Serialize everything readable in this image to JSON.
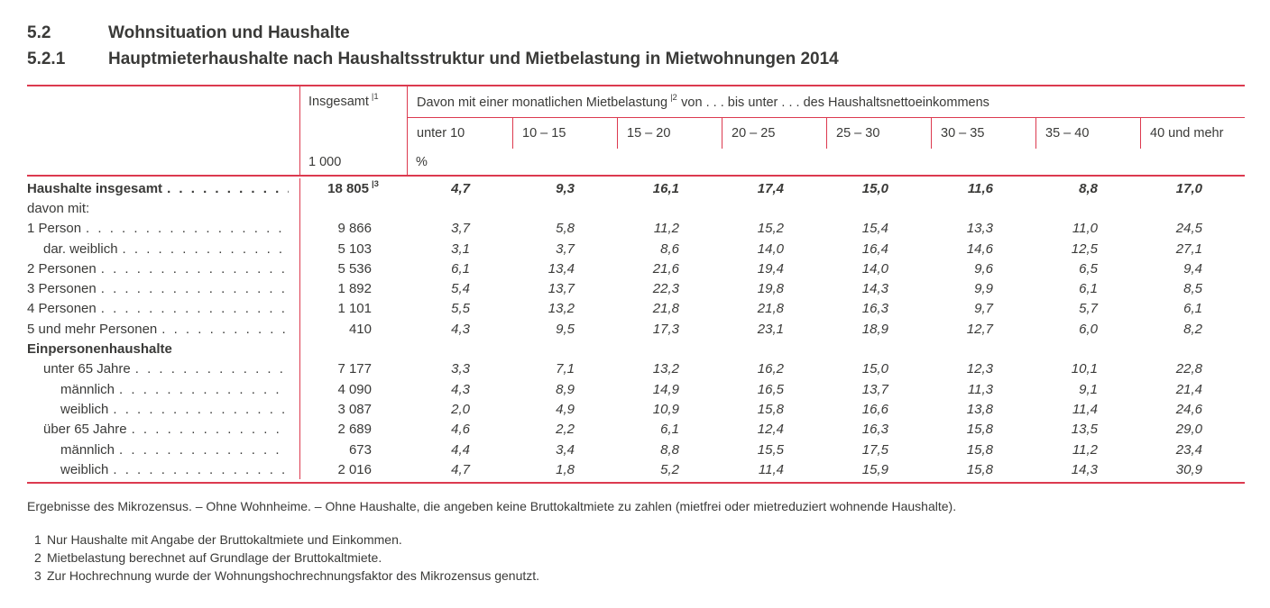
{
  "page": {
    "colors": {
      "accent_red": "#dc3a4f",
      "text": "#3a3a38"
    }
  },
  "heading": {
    "no1": "5.2",
    "title1": "Wohnsituation und Haushalte",
    "no2": "5.2.1",
    "title2": "Hauptmieterhaushalte nach Haushaltsstruktur und Mietbelastung in Mietwohnungen 2014"
  },
  "table": {
    "insgesamt_label": "Insgesamt",
    "insgesamt_fn": "|1",
    "davon_label": "Davon mit einer monatlichen Mietbelastung",
    "davon_fn": "|2",
    "davon_label2": "von . . . bis unter . . . des Haushaltsnettoeinkommens",
    "columns": [
      "unter 10",
      "10 – 15",
      "15 – 20",
      "20 – 25",
      "25 – 30",
      "30 – 35",
      "35 – 40",
      "40 und mehr"
    ],
    "unit_total": "1 000",
    "unit_percent": "%",
    "rows": [
      {
        "label": "Haushalte insgesamt",
        "indent": 0,
        "bold": true,
        "leader": true,
        "total": "18 805",
        "total_fn": "|3",
        "values": [
          "4,7",
          "9,3",
          "16,1",
          "17,4",
          "15,0",
          "11,6",
          "8,8",
          "17,0"
        ]
      },
      {
        "label": "davon mit:",
        "indent": 0,
        "bold": false,
        "leader": false,
        "total": "",
        "values": []
      },
      {
        "label": "1 Person",
        "indent": 0,
        "bold": false,
        "leader": true,
        "total": "9 866",
        "values": [
          "3,7",
          "5,8",
          "11,2",
          "15,2",
          "15,4",
          "13,3",
          "11,0",
          "24,5"
        ]
      },
      {
        "label": "dar. weiblich",
        "indent": 1,
        "bold": false,
        "leader": true,
        "total": "5 103",
        "values": [
          "3,1",
          "3,7",
          "8,6",
          "14,0",
          "16,4",
          "14,6",
          "12,5",
          "27,1"
        ]
      },
      {
        "label": "2 Personen",
        "indent": 0,
        "bold": false,
        "leader": true,
        "total": "5 536",
        "values": [
          "6,1",
          "13,4",
          "21,6",
          "19,4",
          "14,0",
          "9,6",
          "6,5",
          "9,4"
        ]
      },
      {
        "label": "3 Personen",
        "indent": 0,
        "bold": false,
        "leader": true,
        "total": "1 892",
        "values": [
          "5,4",
          "13,7",
          "22,3",
          "19,8",
          "14,3",
          "9,9",
          "6,1",
          "8,5"
        ]
      },
      {
        "label": "4 Personen",
        "indent": 0,
        "bold": false,
        "leader": true,
        "total": "1 101",
        "values": [
          "5,5",
          "13,2",
          "21,8",
          "21,8",
          "16,3",
          "9,7",
          "5,7",
          "6,1"
        ]
      },
      {
        "label": "5 und mehr Personen",
        "indent": 0,
        "bold": false,
        "leader": true,
        "total": "410",
        "values": [
          "4,3",
          "9,5",
          "17,3",
          "23,1",
          "18,9",
          "12,7",
          "6,0",
          "8,2"
        ]
      },
      {
        "label": "Einpersonenhaushalte",
        "indent": 0,
        "bold": true,
        "leader": false,
        "total": "",
        "values": []
      },
      {
        "label": "unter 65 Jahre",
        "indent": 1,
        "bold": false,
        "leader": true,
        "total": "7 177",
        "values": [
          "3,3",
          "7,1",
          "13,2",
          "16,2",
          "15,0",
          "12,3",
          "10,1",
          "22,8"
        ]
      },
      {
        "label": "männlich",
        "indent": 2,
        "bold": false,
        "leader": true,
        "total": "4 090",
        "values": [
          "4,3",
          "8,9",
          "14,9",
          "16,5",
          "13,7",
          "11,3",
          "9,1",
          "21,4"
        ]
      },
      {
        "label": "weiblich",
        "indent": 2,
        "bold": false,
        "leader": true,
        "total": "3 087",
        "values": [
          "2,0",
          "4,9",
          "10,9",
          "15,8",
          "16,6",
          "13,8",
          "11,4",
          "24,6"
        ]
      },
      {
        "label": "über 65 Jahre",
        "indent": 1,
        "bold": false,
        "leader": true,
        "total": "2 689",
        "values": [
          "4,6",
          "2,2",
          "6,1",
          "12,4",
          "16,3",
          "15,8",
          "13,5",
          "29,0"
        ]
      },
      {
        "label": "männlich",
        "indent": 2,
        "bold": false,
        "leader": true,
        "total": "673",
        "values": [
          "4,4",
          "3,4",
          "8,8",
          "15,5",
          "17,5",
          "15,8",
          "11,2",
          "23,4"
        ]
      },
      {
        "label": "weiblich",
        "indent": 2,
        "bold": false,
        "leader": true,
        "total": "2 016",
        "values": [
          "4,7",
          "1,8",
          "5,2",
          "11,4",
          "15,9",
          "15,8",
          "14,3",
          "30,9"
        ]
      }
    ]
  },
  "notes": {
    "source": "Ergebnisse des Mikrozensus. – Ohne Wohnheime. – Ohne Haushalte, die angeben keine Bruttokaltmiete zu zahlen (mietfrei oder mietreduziert wohnende Haushalte).",
    "footnotes": [
      {
        "no": "1",
        "text": "Nur Haushalte mit Angabe der Bruttokaltmiete und Einkommen."
      },
      {
        "no": "2",
        "text": "Mietbelastung berechnet auf Grundlage der Bruttokaltmiete."
      },
      {
        "no": "3",
        "text": "Zur Hochrechnung wurde der Wohnungshochrechnungsfaktor des Mikrozensus genutzt."
      }
    ]
  }
}
